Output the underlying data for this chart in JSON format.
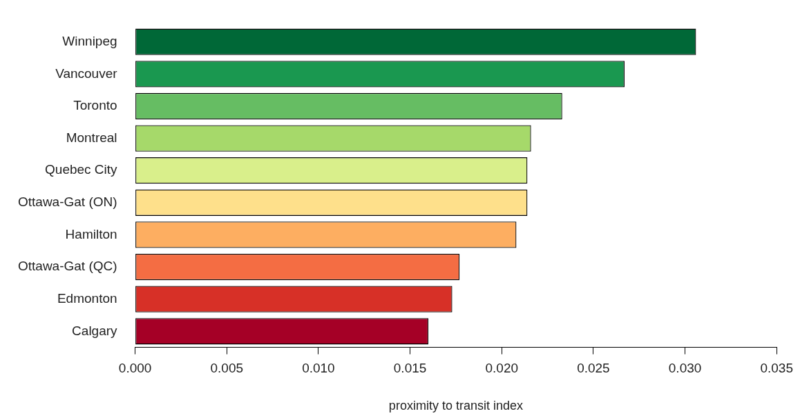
{
  "chart_data": {
    "type": "bar",
    "orientation": "horizontal",
    "xlabel": "proximity to transit index",
    "categories": [
      "Winnipeg",
      "Vancouver",
      "Toronto",
      "Montreal",
      "Quebec City",
      "Ottawa-Gat (ON)",
      "Hamilton",
      "Ottawa-Gat (QC)",
      "Edmonton",
      "Calgary"
    ],
    "values": [
      0.0306,
      0.0267,
      0.0233,
      0.0216,
      0.0214,
      0.0214,
      0.0208,
      0.0177,
      0.0173,
      0.016
    ],
    "colors": [
      "#006837",
      "#1a9850",
      "#66bd63",
      "#a6d96a",
      "#d9ef8b",
      "#fee08b",
      "#fdae61",
      "#f46d43",
      "#d73027",
      "#a50026"
    ],
    "xlim": [
      0,
      0.035
    ],
    "xticks": [
      {
        "value": 0,
        "label": "0.000"
      },
      {
        "value": 0.005,
        "label": "0.005"
      },
      {
        "value": 0.01,
        "label": "0.010"
      },
      {
        "value": 0.015,
        "label": "0.015"
      },
      {
        "value": 0.02,
        "label": "0.020"
      },
      {
        "value": 0.025,
        "label": "0.025"
      },
      {
        "value": 0.03,
        "label": "0.030"
      },
      {
        "value": 0.035,
        "label": "0.035"
      }
    ],
    "grid": false,
    "legend": false
  }
}
